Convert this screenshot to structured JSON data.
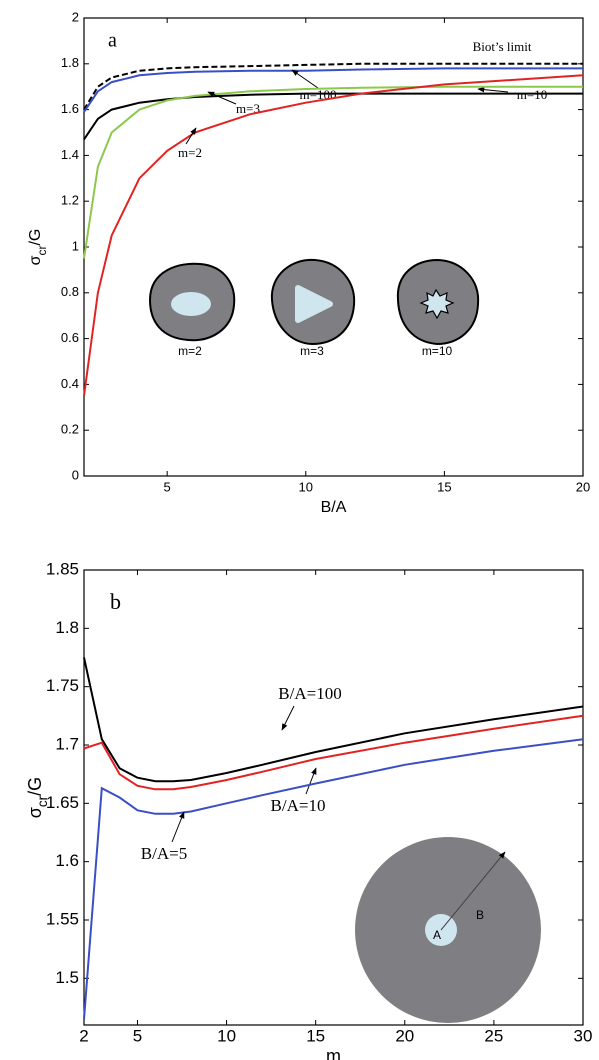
{
  "chart_data": [
    {
      "type": "line",
      "panel_label": "a",
      "xlabel": "B/A",
      "ylabel": {
        "symbol": "σ",
        "subscript": "cr",
        "rest": "/G"
      },
      "x": [
        2,
        2.5,
        3,
        4,
        5,
        6,
        8,
        10,
        12,
        15,
        20
      ],
      "series": [
        {
          "name": "Biot’s limit",
          "color": "#000000",
          "dash": true,
          "values": [
            1.6,
            1.7,
            1.74,
            1.77,
            1.78,
            1.785,
            1.79,
            1.795,
            1.8,
            1.8,
            1.8
          ]
        },
        {
          "name": "m=100",
          "color": "#3b4fc4",
          "values": [
            1.59,
            1.68,
            1.72,
            1.75,
            1.76,
            1.765,
            1.77,
            1.77,
            1.775,
            1.78,
            1.78
          ]
        },
        {
          "name": "m=10",
          "color": "#000000",
          "values": [
            1.47,
            1.56,
            1.6,
            1.63,
            1.645,
            1.655,
            1.665,
            1.67,
            1.67,
            1.67,
            1.67
          ]
        },
        {
          "name": "m=3",
          "color": "#8cc84b",
          "values": [
            0.95,
            1.35,
            1.5,
            1.6,
            1.64,
            1.66,
            1.68,
            1.69,
            1.695,
            1.7,
            1.7
          ]
        },
        {
          "name": "m=2",
          "color": "#e02424",
          "values": [
            0.35,
            0.8,
            1.05,
            1.3,
            1.42,
            1.5,
            1.58,
            1.63,
            1.67,
            1.71,
            1.75
          ]
        }
      ],
      "xlim": [
        2,
        20
      ],
      "xticks": [
        5,
        10,
        15,
        20
      ],
      "ylim": [
        0,
        2
      ],
      "yticks": [
        0,
        0.2,
        0.4,
        0.6,
        0.8,
        1,
        1.2,
        1.4,
        1.6,
        1.8,
        2
      ],
      "inset_labels": [
        "m=2",
        "m=3",
        "m=10"
      ]
    },
    {
      "type": "line",
      "panel_label": "b",
      "xlabel": "m",
      "ylabel": {
        "symbol": "σ",
        "subscript": "cr",
        "rest": "/G"
      },
      "x": [
        2,
        3,
        4,
        5,
        6,
        7,
        8,
        10,
        12,
        15,
        20,
        25,
        30
      ],
      "series": [
        {
          "name": "B/A=100",
          "color": "#000000",
          "values": [
            1.775,
            1.705,
            1.68,
            1.672,
            1.669,
            1.669,
            1.67,
            1.676,
            1.683,
            1.694,
            1.71,
            1.722,
            1.733
          ]
        },
        {
          "name": "B/A=10",
          "color": "#e02424",
          "values": [
            1.697,
            1.702,
            1.675,
            1.665,
            1.662,
            1.662,
            1.664,
            1.67,
            1.677,
            1.688,
            1.702,
            1.714,
            1.725
          ]
        },
        {
          "name": "B/A=5",
          "color": "#3b4fc4",
          "values": [
            1.465,
            1.663,
            1.655,
            1.644,
            1.641,
            1.641,
            1.643,
            1.65,
            1.657,
            1.667,
            1.683,
            1.695,
            1.705
          ]
        }
      ],
      "xlim": [
        2,
        30
      ],
      "xticks": [
        2,
        5,
        10,
        15,
        20,
        25,
        30
      ],
      "ylim": [
        1.46,
        1.85
      ],
      "yticks": [
        1.5,
        1.55,
        1.6,
        1.65,
        1.7,
        1.75,
        1.8,
        1.85
      ],
      "inset_labels": [
        "A",
        "B"
      ]
    }
  ]
}
